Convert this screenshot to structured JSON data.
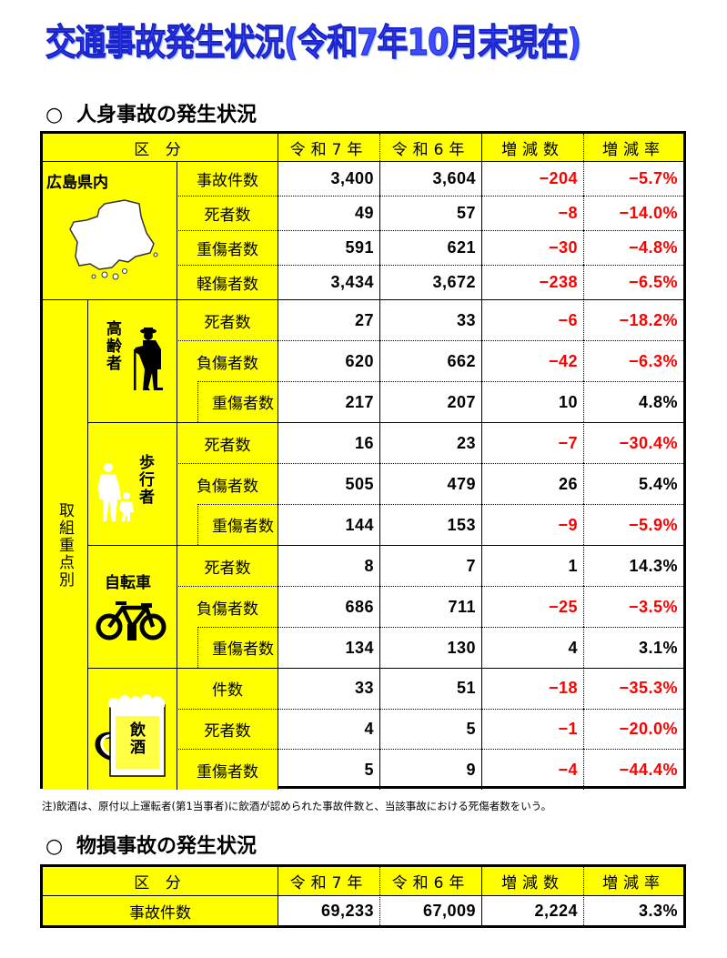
{
  "title": "交通事故発生状況(令和7年10月末現在)",
  "personal": {
    "section_bullet": "○",
    "section_title": "人身事故の発生状況",
    "headers": {
      "category": "区 分",
      "r7": "令和7年",
      "r6": "令和6年",
      "diff": "増減数",
      "rate": "増減率"
    },
    "hiroshima": {
      "label": "広島県内",
      "icon": "hiroshima-map-icon",
      "rows": [
        {
          "label": "事故件数",
          "r7": "3,400",
          "r6": "3,604",
          "diff": "-204",
          "rate": "-5.7%"
        },
        {
          "label": "死者数",
          "r7": "49",
          "r6": "57",
          "diff": "-8",
          "rate": "-14.0%"
        },
        {
          "label": "重傷者数",
          "r7": "591",
          "r6": "621",
          "diff": "-30",
          "rate": "-4.8%"
        },
        {
          "label": "軽傷者数",
          "r7": "3,434",
          "r6": "3,672",
          "diff": "-238",
          "rate": "-6.5%"
        }
      ]
    },
    "focus_label": "取組重点別",
    "groups": [
      {
        "label": "高齢者",
        "icon": "elderly-person-icon",
        "rows": [
          {
            "label": "死者数",
            "r7": "27",
            "r6": "33",
            "diff": "-6",
            "rate": "-18.2%"
          },
          {
            "label": "負傷者数",
            "r7": "620",
            "r6": "662",
            "diff": "-42",
            "rate": "-6.3%"
          },
          {
            "label": "重傷者数",
            "r7": "217",
            "r6": "207",
            "diff": "10",
            "rate": "4.8%"
          }
        ]
      },
      {
        "label": "歩行者",
        "icon": "pedestrian-icon",
        "rows": [
          {
            "label": "死者数",
            "r7": "16",
            "r6": "23",
            "diff": "-7",
            "rate": "-30.4%"
          },
          {
            "label": "負傷者数",
            "r7": "505",
            "r6": "479",
            "diff": "26",
            "rate": "5.4%"
          },
          {
            "label": "重傷者数",
            "r7": "144",
            "r6": "153",
            "diff": "-9",
            "rate": "-5.9%"
          }
        ]
      },
      {
        "label": "自転車",
        "icon": "bicycle-icon",
        "rows": [
          {
            "label": "死者数",
            "r7": "8",
            "r6": "7",
            "diff": "1",
            "rate": "14.3%"
          },
          {
            "label": "負傷者数",
            "r7": "686",
            "r6": "711",
            "diff": "-25",
            "rate": "-3.5%"
          },
          {
            "label": "重傷者数",
            "r7": "134",
            "r6": "130",
            "diff": "4",
            "rate": "3.1%"
          }
        ]
      },
      {
        "label": "飲酒",
        "icon": "beer-mug-icon",
        "rows": [
          {
            "label": "件数",
            "r7": "33",
            "r6": "51",
            "diff": "-18",
            "rate": "-35.3%"
          },
          {
            "label": "死者数",
            "r7": "4",
            "r6": "5",
            "diff": "-1",
            "rate": "-20.0%"
          },
          {
            "label": "重傷者数",
            "r7": "5",
            "r6": "9",
            "diff": "-4",
            "rate": "-44.4%"
          }
        ]
      }
    ],
    "note": "注)飲酒は、原付以上運転者(第1当事者)に飲酒が認められた事故件数と、当該事故における死傷者数をいう。"
  },
  "property": {
    "section_bullet": "○",
    "section_title": "物損事故の発生状況",
    "headers": {
      "category": "区 分",
      "r7": "令和7年",
      "r6": "令和6年",
      "diff": "増減数",
      "rate": "増減率"
    },
    "row": {
      "label": "事故件数",
      "r7": "69,233",
      "r6": "67,009",
      "diff": "2,224",
      "rate": "3.3%"
    }
  },
  "colors": {
    "title_blue": "#3d4cff",
    "header_yellow": "#ffff00",
    "negative_red": "#ff0000"
  }
}
